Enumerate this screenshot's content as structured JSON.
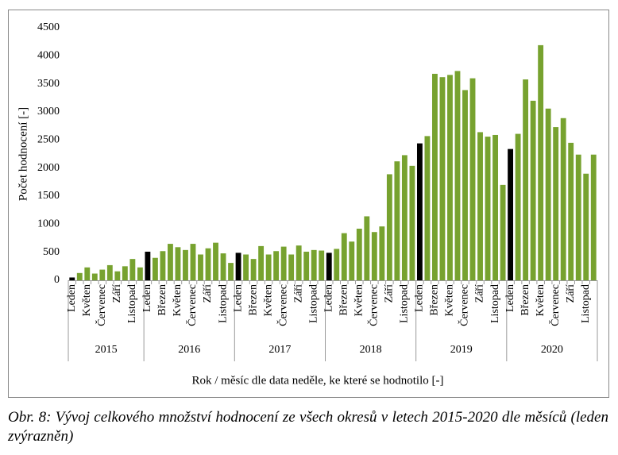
{
  "chart_data": {
    "type": "bar",
    "ylabel": "Počet hodnocení [-]",
    "xlabel": "Rok / měsíc dle data neděle, ke které se hodnotilo [-]",
    "caption": "Obr. 8: Vývoj celkového množství hodnocení ze všech okresů v letech 2015-2020 dle měsíců (leden zvýrazněn)",
    "groups": [
      {
        "label": "2015",
        "categories": [
          "Leden",
          null,
          "Květen",
          null,
          "Červenec",
          null,
          "Září",
          null,
          "Listopad",
          null
        ]
      },
      {
        "label": "2016",
        "categories": [
          "Leden",
          null,
          "Březen",
          null,
          "Květen",
          null,
          "Červenec",
          null,
          "Září",
          null,
          "Listopad",
          null
        ]
      },
      {
        "label": "2017",
        "categories": [
          "Leden",
          null,
          "Březen",
          null,
          "Květen",
          null,
          "Červenec",
          null,
          "Září",
          null,
          "Listopad",
          null
        ]
      },
      {
        "label": "2018",
        "categories": [
          "Leden",
          null,
          "Březen",
          null,
          "Květen",
          null,
          "Červenec",
          null,
          "Září",
          null,
          "Listopad",
          null
        ]
      },
      {
        "label": "2019",
        "categories": [
          "Leden",
          null,
          "Březen",
          null,
          "Květen",
          null,
          "Červenec",
          null,
          "Září",
          null,
          "Listopad",
          null
        ]
      },
      {
        "label": "2020",
        "categories": [
          "Leden",
          null,
          "Březen",
          null,
          "Květen",
          null,
          "Červenec",
          null,
          "Září",
          null,
          "Listopad",
          null
        ]
      }
    ],
    "values": [
      50,
      130,
      230,
      120,
      190,
      270,
      160,
      250,
      380,
      230,
      510,
      400,
      520,
      650,
      590,
      540,
      650,
      460,
      570,
      670,
      480,
      310,
      490,
      460,
      380,
      610,
      460,
      520,
      600,
      460,
      620,
      510,
      540,
      530,
      490,
      560,
      840,
      690,
      920,
      1140,
      860,
      960,
      1890,
      2120,
      2230,
      2040,
      2440,
      2570,
      3680,
      3620,
      3660,
      3730,
      3390,
      3600,
      2640,
      2560,
      2590,
      1700,
      2340,
      2610,
      3580,
      3200,
      4190,
      3060,
      2730,
      2890,
      2450,
      2240,
      1900,
      2240
    ],
    "color": "#77a22f",
    "highlight_color": "#000000",
    "highlight_category": "Leden",
    "ylim": [
      0,
      4500
    ],
    "yticks": [
      0,
      500,
      1000,
      1500,
      2000,
      2500,
      3000,
      3500,
      4000,
      4500
    ]
  }
}
